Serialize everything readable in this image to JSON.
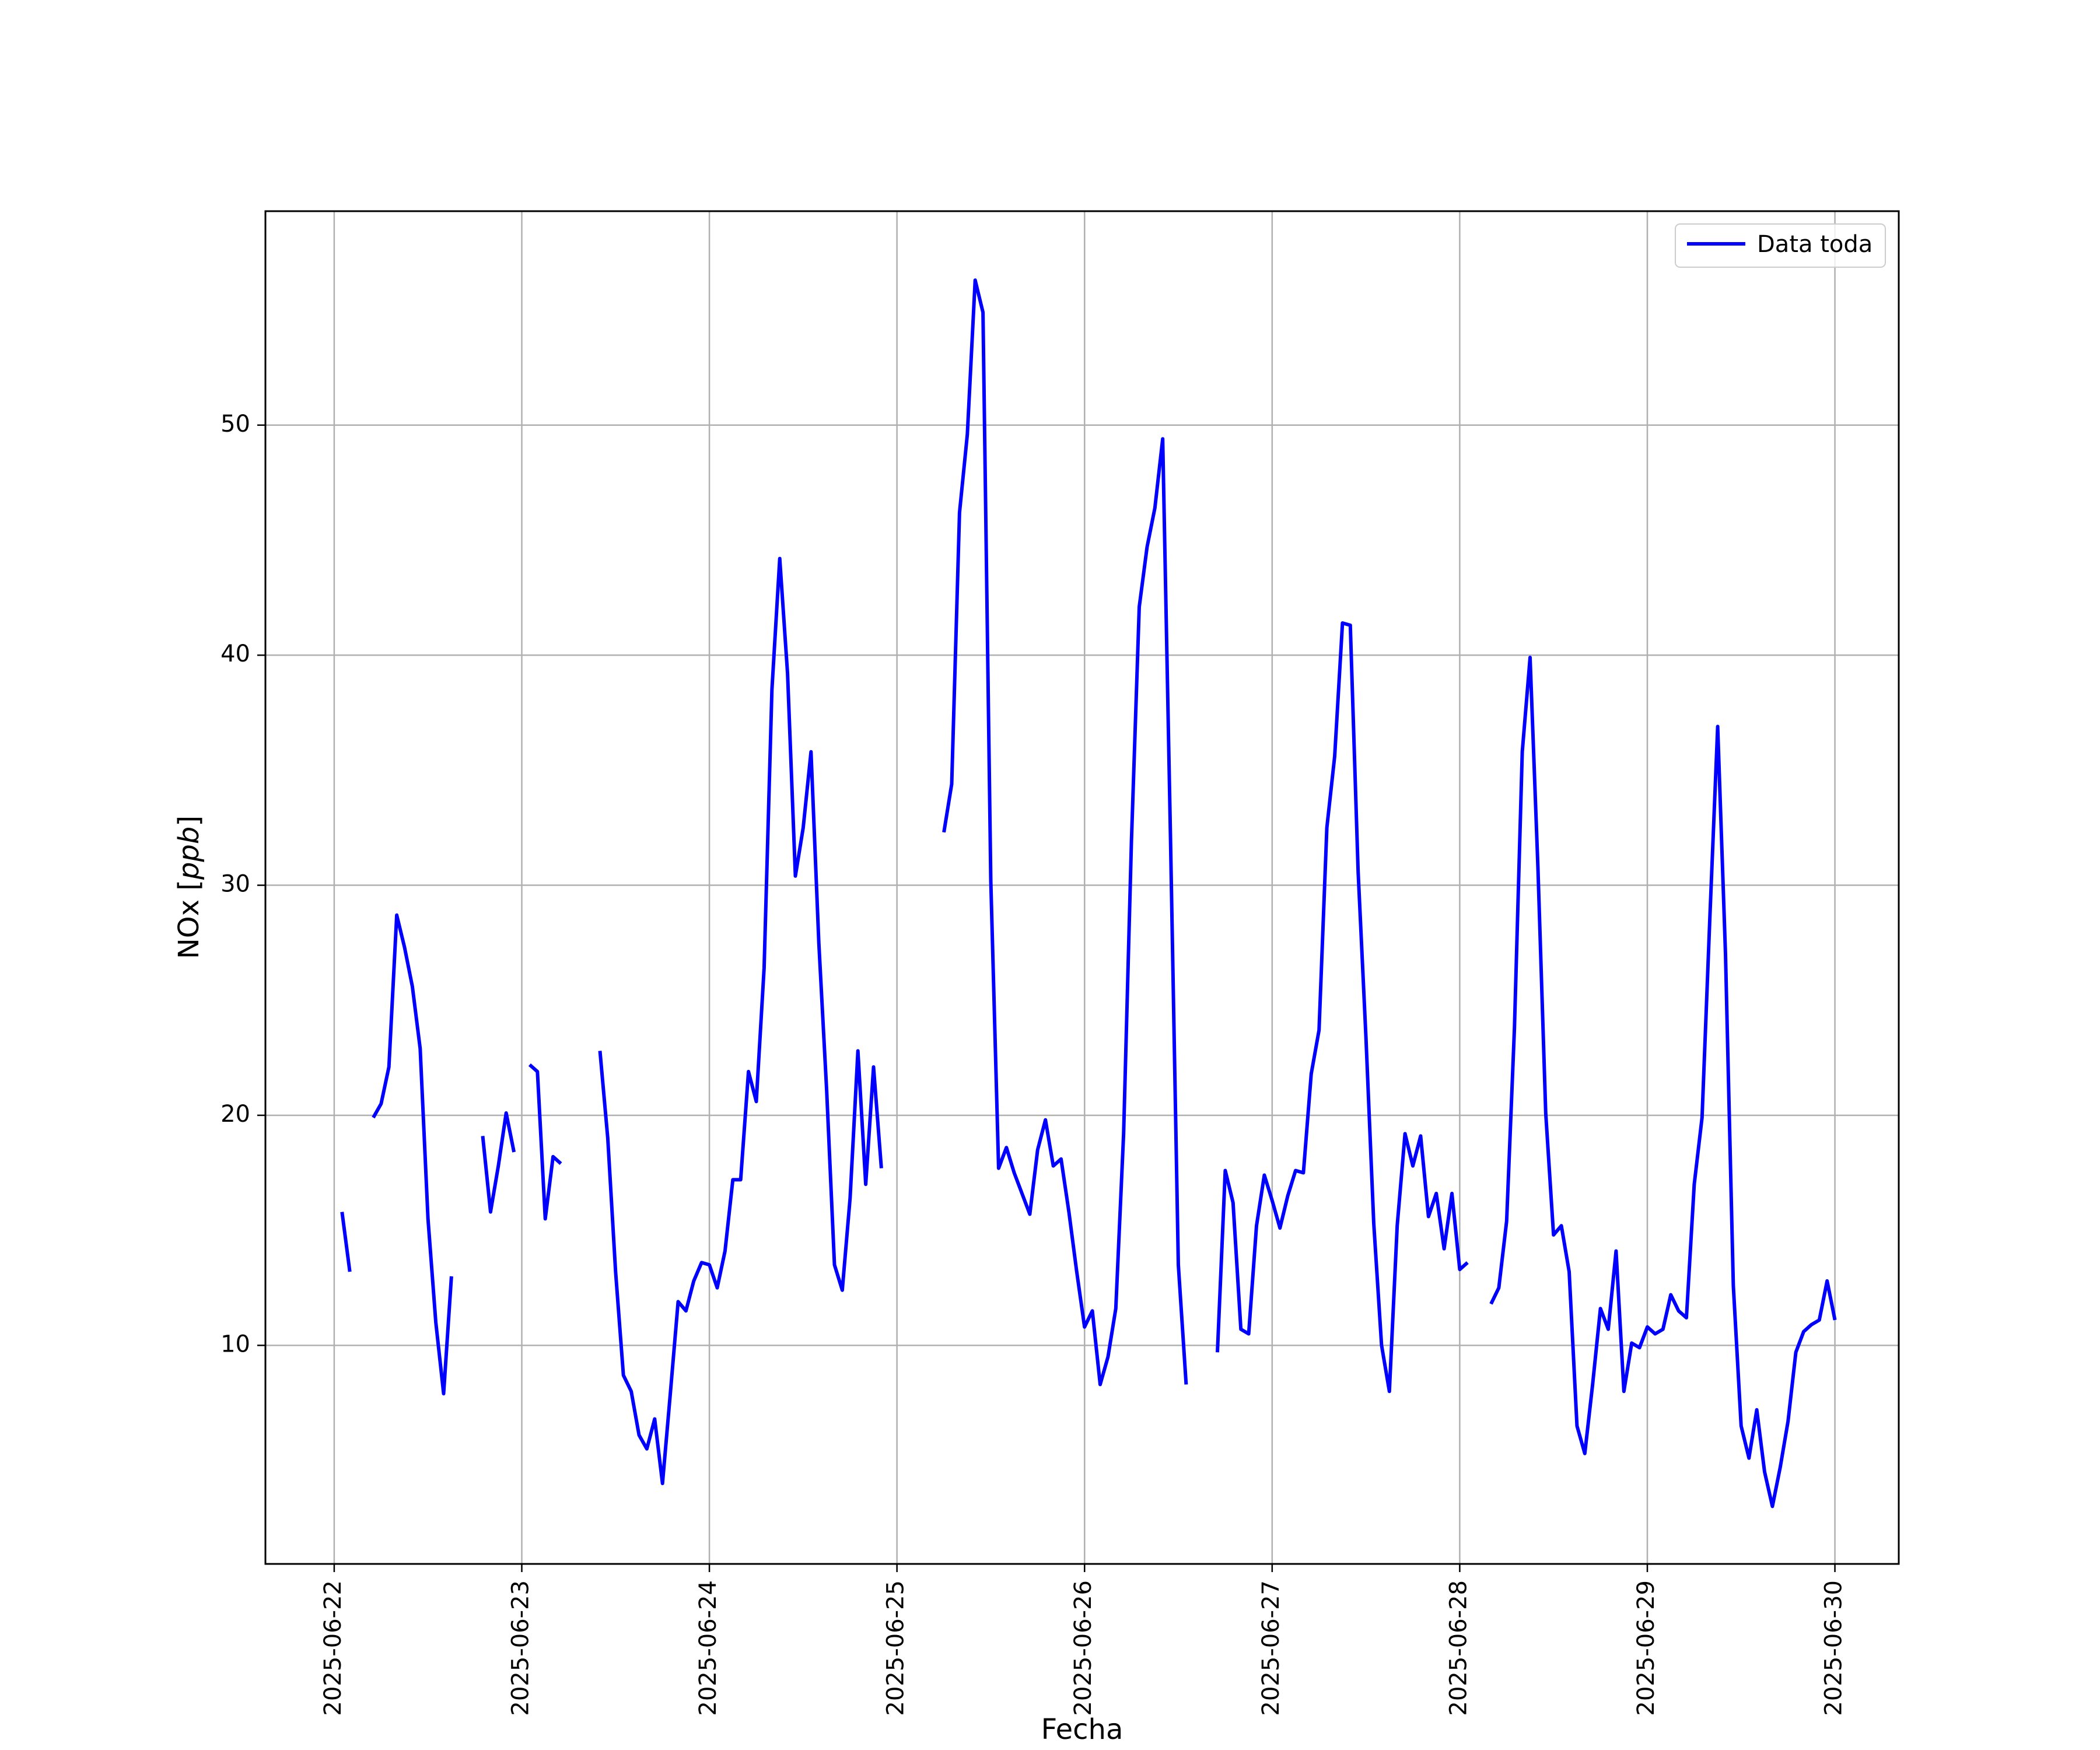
{
  "chart_data": {
    "type": "line",
    "xlabel": "Fecha",
    "ylabel_text": "NOx [",
    "ylabel_unit": "ppb",
    "ylabel_close": "]",
    "ylim": [
      0.5,
      59.3
    ],
    "xlim": [
      "2025-06-21T15:12",
      "2025-06-30T08:10"
    ],
    "grid": true,
    "legend_position": "top-right",
    "x_ticks": [
      "2025-06-22",
      "2025-06-23",
      "2025-06-24",
      "2025-06-25",
      "2025-06-26",
      "2025-06-27",
      "2025-06-28",
      "2025-06-29",
      "2025-06-30"
    ],
    "y_ticks": [
      10,
      20,
      30,
      40,
      50
    ],
    "series": [
      {
        "name": "Data toda",
        "color": "#0000ff",
        "points": [
          [
            "2025-06-22T01:00",
            15.8
          ],
          [
            "2025-06-22T02:00",
            13.2
          ],
          [
            "2025-06-22T03:00",
            null
          ],
          [
            "2025-06-22T05:00",
            19.9
          ],
          [
            "2025-06-22T06:00",
            20.5
          ],
          [
            "2025-06-22T07:00",
            22.1
          ],
          [
            "2025-06-22T08:00",
            28.7
          ],
          [
            "2025-06-22T09:00",
            27.3
          ],
          [
            "2025-06-22T10:00",
            25.6
          ],
          [
            "2025-06-22T11:00",
            22.9
          ],
          [
            "2025-06-22T12:00",
            15.5
          ],
          [
            "2025-06-22T13:00",
            11.0
          ],
          [
            "2025-06-22T14:00",
            7.9
          ],
          [
            "2025-06-22T15:00",
            13.0
          ],
          [
            "2025-06-22T16:00",
            null
          ],
          [
            "2025-06-22T19:00",
            19.1
          ],
          [
            "2025-06-22T20:00",
            15.8
          ],
          [
            "2025-06-22T21:00",
            17.8
          ],
          [
            "2025-06-22T22:00",
            20.1
          ],
          [
            "2025-06-22T23:00",
            18.4
          ],
          [
            "2025-06-23T00:00",
            null
          ],
          [
            "2025-06-23T01:00",
            22.2
          ],
          [
            "2025-06-23T02:00",
            21.9
          ],
          [
            "2025-06-23T03:00",
            15.5
          ],
          [
            "2025-06-23T04:00",
            18.2
          ],
          [
            "2025-06-23T05:00",
            17.9
          ],
          [
            "2025-06-23T06:00",
            null
          ],
          [
            "2025-06-23T10:00",
            22.8
          ],
          [
            "2025-06-23T11:00",
            19.0
          ],
          [
            "2025-06-23T12:00",
            13.2
          ],
          [
            "2025-06-23T13:00",
            8.7
          ],
          [
            "2025-06-23T14:00",
            8.0
          ],
          [
            "2025-06-23T15:00",
            6.1
          ],
          [
            "2025-06-23T16:00",
            5.5
          ],
          [
            "2025-06-23T17:00",
            6.8
          ],
          [
            "2025-06-23T18:00",
            4.0
          ],
          [
            "2025-06-23T19:00",
            7.9
          ],
          [
            "2025-06-23T20:00",
            11.9
          ],
          [
            "2025-06-23T21:00",
            11.5
          ],
          [
            "2025-06-23T22:00",
            12.8
          ],
          [
            "2025-06-23T23:00",
            13.6
          ],
          [
            "2025-06-24T00:00",
            13.5
          ],
          [
            "2025-06-24T01:00",
            12.5
          ],
          [
            "2025-06-24T02:00",
            14.1
          ],
          [
            "2025-06-24T03:00",
            17.2
          ],
          [
            "2025-06-24T04:00",
            17.2
          ],
          [
            "2025-06-24T05:00",
            21.9
          ],
          [
            "2025-06-24T06:00",
            20.6
          ],
          [
            "2025-06-24T07:00",
            26.4
          ],
          [
            "2025-06-24T08:00",
            38.5
          ],
          [
            "2025-06-24T09:00",
            44.2
          ],
          [
            "2025-06-24T10:00",
            39.2
          ],
          [
            "2025-06-24T11:00",
            30.4
          ],
          [
            "2025-06-24T12:00",
            32.5
          ],
          [
            "2025-06-24T13:00",
            35.8
          ],
          [
            "2025-06-24T14:00",
            27.5
          ],
          [
            "2025-06-24T15:00",
            21.1
          ],
          [
            "2025-06-24T16:00",
            13.5
          ],
          [
            "2025-06-24T17:00",
            12.4
          ],
          [
            "2025-06-24T18:00",
            16.4
          ],
          [
            "2025-06-24T19:00",
            22.8
          ],
          [
            "2025-06-24T20:00",
            17.0
          ],
          [
            "2025-06-24T21:00",
            22.1
          ],
          [
            "2025-06-24T22:00",
            17.7
          ],
          [
            "2025-06-24T23:00",
            null
          ],
          [
            "2025-06-25T06:00",
            32.3
          ],
          [
            "2025-06-25T07:00",
            34.4
          ],
          [
            "2025-06-25T08:00",
            46.2
          ],
          [
            "2025-06-25T09:00",
            49.6
          ],
          [
            "2025-06-25T10:00",
            56.3
          ],
          [
            "2025-06-25T11:00",
            54.9
          ],
          [
            "2025-06-25T12:00",
            30.2
          ],
          [
            "2025-06-25T13:00",
            17.7
          ],
          [
            "2025-06-25T14:00",
            18.6
          ],
          [
            "2025-06-25T15:00",
            17.5
          ],
          [
            "2025-06-25T16:00",
            16.6
          ],
          [
            "2025-06-25T17:00",
            15.7
          ],
          [
            "2025-06-25T18:00",
            18.5
          ],
          [
            "2025-06-25T19:00",
            19.8
          ],
          [
            "2025-06-25T20:00",
            17.8
          ],
          [
            "2025-06-25T21:00",
            18.1
          ],
          [
            "2025-06-25T22:00",
            15.8
          ],
          [
            "2025-06-25T23:00",
            13.2
          ],
          [
            "2025-06-26T00:00",
            10.8
          ],
          [
            "2025-06-26T01:00",
            11.5
          ],
          [
            "2025-06-26T02:00",
            8.3
          ],
          [
            "2025-06-26T03:00",
            9.5
          ],
          [
            "2025-06-26T04:00",
            11.6
          ],
          [
            "2025-06-26T05:00",
            19.2
          ],
          [
            "2025-06-26T06:00",
            31.9
          ],
          [
            "2025-06-26T07:00",
            42.1
          ],
          [
            "2025-06-26T08:00",
            44.7
          ],
          [
            "2025-06-26T09:00",
            46.4
          ],
          [
            "2025-06-26T10:00",
            49.4
          ],
          [
            "2025-06-26T11:00",
            32.0
          ],
          [
            "2025-06-26T12:00",
            13.5
          ],
          [
            "2025-06-26T13:00",
            8.3
          ],
          [
            "2025-06-26T14:00",
            null
          ],
          [
            "2025-06-26T17:00",
            9.7
          ],
          [
            "2025-06-26T18:00",
            17.6
          ],
          [
            "2025-06-26T19:00",
            16.2
          ],
          [
            "2025-06-26T20:00",
            10.7
          ],
          [
            "2025-06-26T21:00",
            10.5
          ],
          [
            "2025-06-26T22:00",
            15.2
          ],
          [
            "2025-06-26T23:00",
            17.4
          ],
          [
            "2025-06-27T00:00",
            16.3
          ],
          [
            "2025-06-27T01:00",
            15.1
          ],
          [
            "2025-06-27T02:00",
            16.5
          ],
          [
            "2025-06-27T03:00",
            17.6
          ],
          [
            "2025-06-27T04:00",
            17.5
          ],
          [
            "2025-06-27T05:00",
            21.8
          ],
          [
            "2025-06-27T06:00",
            23.7
          ],
          [
            "2025-06-27T07:00",
            32.5
          ],
          [
            "2025-06-27T08:00",
            35.6
          ],
          [
            "2025-06-27T09:00",
            41.4
          ],
          [
            "2025-06-27T10:00",
            41.3
          ],
          [
            "2025-06-27T11:00",
            30.6
          ],
          [
            "2025-06-27T12:00",
            23.4
          ],
          [
            "2025-06-27T13:00",
            15.3
          ],
          [
            "2025-06-27T14:00",
            10.0
          ],
          [
            "2025-06-27T15:00",
            8.0
          ],
          [
            "2025-06-27T16:00",
            15.2
          ],
          [
            "2025-06-27T17:00",
            19.2
          ],
          [
            "2025-06-27T18:00",
            17.8
          ],
          [
            "2025-06-27T19:00",
            19.1
          ],
          [
            "2025-06-27T20:00",
            15.6
          ],
          [
            "2025-06-27T21:00",
            16.6
          ],
          [
            "2025-06-27T22:00",
            14.2
          ],
          [
            "2025-06-27T23:00",
            16.6
          ],
          [
            "2025-06-28T00:00",
            13.3
          ],
          [
            "2025-06-28T01:00",
            13.6
          ],
          [
            "2025-06-28T02:00",
            null
          ],
          [
            "2025-06-28T04:00",
            11.8
          ],
          [
            "2025-06-28T05:00",
            12.5
          ],
          [
            "2025-06-28T06:00",
            15.4
          ],
          [
            "2025-06-28T07:00",
            23.8
          ],
          [
            "2025-06-28T08:00",
            35.8
          ],
          [
            "2025-06-28T09:00",
            39.9
          ],
          [
            "2025-06-28T10:00",
            30.8
          ],
          [
            "2025-06-28T11:00",
            20.1
          ],
          [
            "2025-06-28T12:00",
            14.8
          ],
          [
            "2025-06-28T13:00",
            15.2
          ],
          [
            "2025-06-28T14:00",
            13.2
          ],
          [
            "2025-06-28T15:00",
            6.5
          ],
          [
            "2025-06-28T16:00",
            5.3
          ],
          [
            "2025-06-28T17:00",
            8.3
          ],
          [
            "2025-06-28T18:00",
            11.6
          ],
          [
            "2025-06-28T19:00",
            10.7
          ],
          [
            "2025-06-28T20:00",
            14.1
          ],
          [
            "2025-06-28T21:00",
            8.0
          ],
          [
            "2025-06-28T22:00",
            10.1
          ],
          [
            "2025-06-28T23:00",
            9.9
          ],
          [
            "2025-06-29T00:00",
            10.8
          ],
          [
            "2025-06-29T01:00",
            10.5
          ],
          [
            "2025-06-29T02:00",
            10.7
          ],
          [
            "2025-06-29T03:00",
            12.2
          ],
          [
            "2025-06-29T04:00",
            11.5
          ],
          [
            "2025-06-29T05:00",
            11.2
          ],
          [
            "2025-06-29T06:00",
            17.0
          ],
          [
            "2025-06-29T07:00",
            19.9
          ],
          [
            "2025-06-29T08:00",
            28.6
          ],
          [
            "2025-06-29T09:00",
            36.9
          ],
          [
            "2025-06-29T10:00",
            27.0
          ],
          [
            "2025-06-29T11:00",
            12.6
          ],
          [
            "2025-06-29T12:00",
            6.5
          ],
          [
            "2025-06-29T13:00",
            5.1
          ],
          [
            "2025-06-29T14:00",
            7.2
          ],
          [
            "2025-06-29T15:00",
            4.5
          ],
          [
            "2025-06-29T16:00",
            3.0
          ],
          [
            "2025-06-29T17:00",
            4.7
          ],
          [
            "2025-06-29T18:00",
            6.7
          ],
          [
            "2025-06-29T19:00",
            9.7
          ],
          [
            "2025-06-29T20:00",
            10.6
          ],
          [
            "2025-06-29T21:00",
            10.9
          ],
          [
            "2025-06-29T22:00",
            11.1
          ],
          [
            "2025-06-29T23:00",
            12.8
          ],
          [
            "2025-06-30T00:00",
            11.1
          ]
        ]
      }
    ]
  }
}
